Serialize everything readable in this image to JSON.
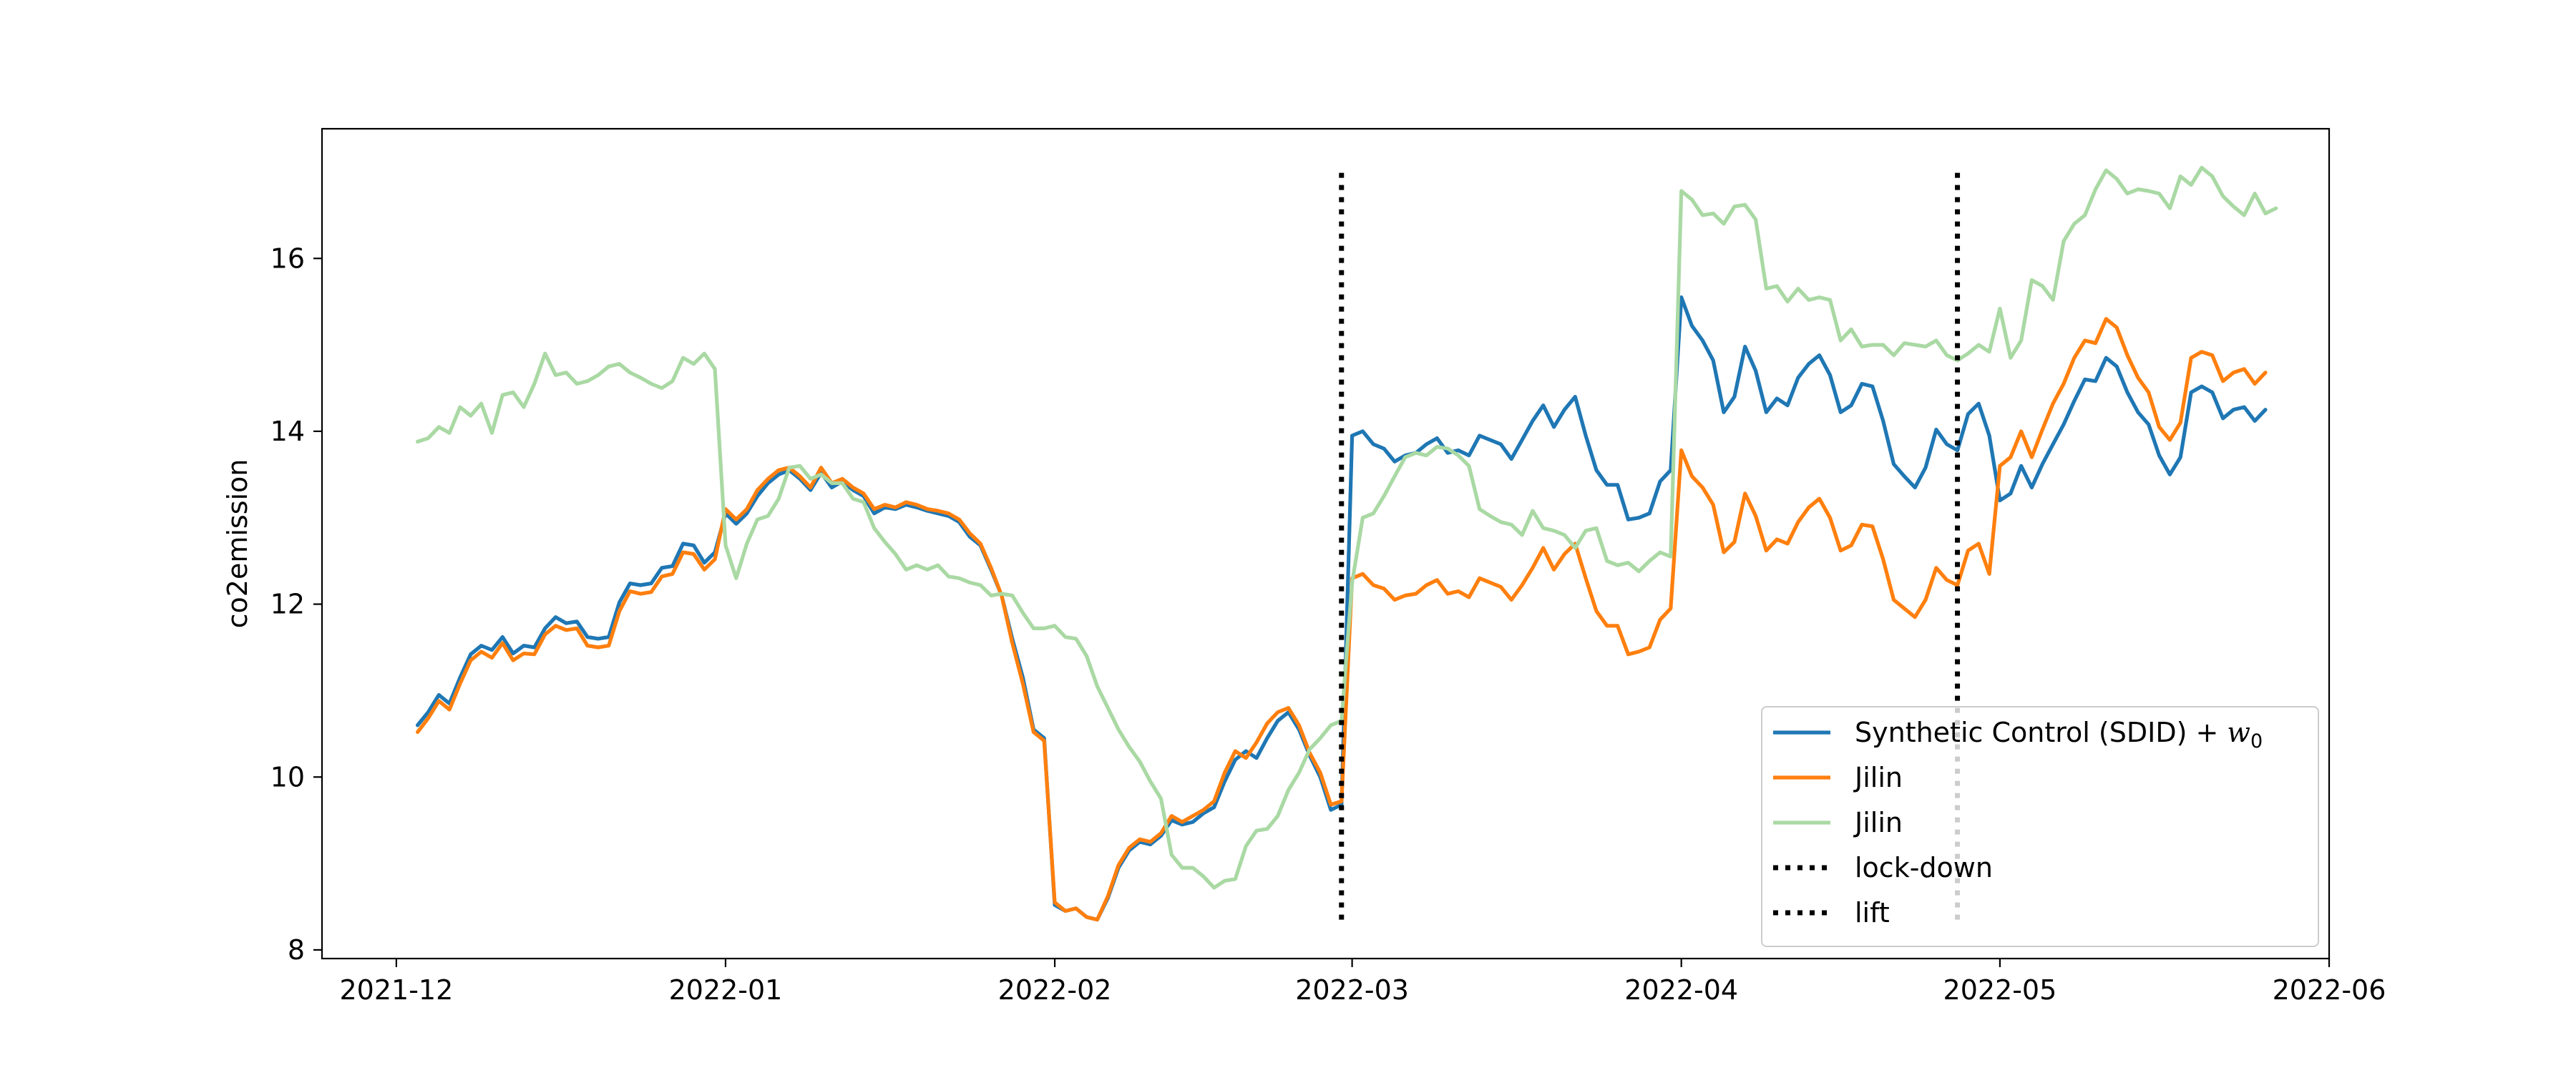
{
  "chart_data": {
    "type": "line",
    "title": "",
    "xlabel": "",
    "ylabel": "co2emission",
    "xlim": [
      "2021-11-24",
      "2022-06-01"
    ],
    "ylim": [
      7.9,
      17.5
    ],
    "x_ticks": [
      "2021-12",
      "2022-01",
      "2022-02",
      "2022-03",
      "2022-04",
      "2022-05",
      "2022-06"
    ],
    "y_ticks": [
      8,
      10,
      12,
      14,
      16
    ],
    "grid": false,
    "legend_position": "lower right",
    "series": [
      {
        "name": "Synthetic Control (SDID) + w0",
        "color": "#1f77b4",
        "start_date": "2021-12-03",
        "values": [
          10.6,
          10.75,
          10.95,
          10.85,
          11.15,
          11.42,
          11.52,
          11.47,
          11.62,
          11.43,
          11.52,
          11.5,
          11.72,
          11.85,
          11.78,
          11.8,
          11.62,
          11.6,
          11.62,
          12.02,
          12.24,
          12.22,
          12.24,
          12.42,
          12.44,
          12.7,
          12.68,
          12.48,
          12.6,
          13.05,
          12.93,
          13.05,
          13.25,
          13.4,
          13.5,
          13.55,
          13.45,
          13.32,
          13.52,
          13.35,
          13.42,
          13.32,
          13.25,
          13.05,
          13.12,
          13.1,
          13.15,
          13.12,
          13.08,
          13.05,
          13.02,
          12.95,
          12.78,
          12.68,
          12.4,
          12.1,
          11.6,
          11.15,
          10.55,
          10.45,
          8.52,
          8.45,
          8.48,
          8.38,
          8.35,
          8.6,
          8.95,
          9.15,
          9.25,
          9.22,
          9.32,
          9.5,
          9.45,
          9.48,
          9.58,
          9.65,
          9.95,
          10.2,
          10.3,
          10.22,
          10.45,
          10.65,
          10.75,
          10.55,
          10.25,
          10.0,
          9.62,
          9.68,
          13.95,
          14.0,
          13.85,
          13.8,
          13.65,
          13.72,
          13.75,
          13.85,
          13.92,
          13.75,
          13.78,
          13.72,
          13.95,
          13.9,
          13.85,
          13.68,
          13.9,
          14.12,
          14.3,
          14.05,
          14.25,
          14.4,
          13.95,
          13.55,
          13.38,
          13.38,
          12.98,
          13.0,
          13.05,
          13.42,
          13.55,
          15.55,
          15.22,
          15.05,
          14.82,
          14.22,
          14.4,
          14.98,
          14.7,
          14.22,
          14.38,
          14.3,
          14.62,
          14.78,
          14.88,
          14.65,
          14.22,
          14.3,
          14.55,
          14.52,
          14.12,
          13.62,
          13.48,
          13.35,
          13.58,
          14.02,
          13.85,
          13.78,
          14.2,
          14.32,
          13.95,
          13.2,
          13.28,
          13.6,
          13.35,
          13.62,
          13.85,
          14.08,
          14.35,
          14.6,
          14.58,
          14.85,
          14.75,
          14.45,
          14.22,
          14.08,
          13.72,
          13.5,
          13.7,
          14.45,
          14.52,
          14.45,
          14.15,
          14.25,
          14.28,
          14.12,
          14.25
        ]
      },
      {
        "name": "Jilin",
        "color": "#ff7f0e",
        "start_date": "2021-12-03",
        "values": [
          10.52,
          10.68,
          10.88,
          10.78,
          11.08,
          11.35,
          11.45,
          11.38,
          11.55,
          11.35,
          11.43,
          11.42,
          11.65,
          11.75,
          11.7,
          11.72,
          11.52,
          11.5,
          11.52,
          11.92,
          12.15,
          12.12,
          12.14,
          12.32,
          12.35,
          12.6,
          12.58,
          12.4,
          12.52,
          13.1,
          12.98,
          13.1,
          13.32,
          13.45,
          13.55,
          13.58,
          13.48,
          13.35,
          13.58,
          13.4,
          13.45,
          13.35,
          13.28,
          13.1,
          13.15,
          13.12,
          13.18,
          13.15,
          13.1,
          13.08,
          13.05,
          12.98,
          12.82,
          12.7,
          12.42,
          12.1,
          11.55,
          11.08,
          10.52,
          10.42,
          8.55,
          8.45,
          8.48,
          8.38,
          8.35,
          8.62,
          8.98,
          9.18,
          9.28,
          9.25,
          9.35,
          9.55,
          9.48,
          9.55,
          9.62,
          9.72,
          10.05,
          10.3,
          10.22,
          10.4,
          10.62,
          10.75,
          10.8,
          10.6,
          10.28,
          10.05,
          9.68,
          9.72,
          12.3,
          12.35,
          12.22,
          12.18,
          12.05,
          12.1,
          12.12,
          12.22,
          12.28,
          12.12,
          12.15,
          12.08,
          12.3,
          12.25,
          12.2,
          12.05,
          12.22,
          12.42,
          12.65,
          12.4,
          12.58,
          12.7,
          12.3,
          11.92,
          11.75,
          11.75,
          11.42,
          11.45,
          11.5,
          11.82,
          11.95,
          13.78,
          13.48,
          13.35,
          13.15,
          12.6,
          12.72,
          13.28,
          13.02,
          12.62,
          12.75,
          12.7,
          12.95,
          13.12,
          13.22,
          13.0,
          12.62,
          12.68,
          12.92,
          12.9,
          12.52,
          12.05,
          11.95,
          11.85,
          12.05,
          12.42,
          12.28,
          12.22,
          12.62,
          12.7,
          12.35,
          13.6,
          13.7,
          14.0,
          13.7,
          14.02,
          14.32,
          14.55,
          14.85,
          15.05,
          15.02,
          15.3,
          15.2,
          14.88,
          14.62,
          14.45,
          14.05,
          13.9,
          14.1,
          14.85,
          14.92,
          14.88,
          14.58,
          14.68,
          14.72,
          14.55,
          14.68
        ]
      },
      {
        "name": "Jilin",
        "color": "#aad9a4",
        "start_date": "2021-12-03",
        "values": [
          13.88,
          13.92,
          14.05,
          13.98,
          14.28,
          14.18,
          14.32,
          13.98,
          14.42,
          14.45,
          14.28,
          14.55,
          14.9,
          14.65,
          14.68,
          14.55,
          14.58,
          14.65,
          14.75,
          14.78,
          14.68,
          14.62,
          14.55,
          14.5,
          14.58,
          14.85,
          14.78,
          14.9,
          14.72,
          12.68,
          12.3,
          12.7,
          12.98,
          13.02,
          13.22,
          13.58,
          13.6,
          13.45,
          13.5,
          13.4,
          13.4,
          13.22,
          13.18,
          12.88,
          12.72,
          12.58,
          12.4,
          12.45,
          12.4,
          12.45,
          12.32,
          12.3,
          12.25,
          12.22,
          12.1,
          12.12,
          12.1,
          11.9,
          11.72,
          11.72,
          11.75,
          11.62,
          11.6,
          11.4,
          11.05,
          10.8,
          10.55,
          10.35,
          10.18,
          9.95,
          9.75,
          9.1,
          8.95,
          8.95,
          8.85,
          8.72,
          8.8,
          8.82,
          9.2,
          9.38,
          9.4,
          9.55,
          9.85,
          10.05,
          10.32,
          10.45,
          10.6,
          10.65,
          12.25,
          13.0,
          13.05,
          13.25,
          13.48,
          13.7,
          13.75,
          13.72,
          13.82,
          13.8,
          13.72,
          13.6,
          13.1,
          13.02,
          12.95,
          12.92,
          12.8,
          13.08,
          12.88,
          12.85,
          12.8,
          12.65,
          12.85,
          12.88,
          12.5,
          12.45,
          12.48,
          12.38,
          12.5,
          12.6,
          12.55,
          16.78,
          16.68,
          16.5,
          16.52,
          16.4,
          16.6,
          16.62,
          16.45,
          15.65,
          15.68,
          15.5,
          15.65,
          15.52,
          15.55,
          15.52,
          15.05,
          15.18,
          14.98,
          15.0,
          15.0,
          14.88,
          15.02,
          15.0,
          14.98,
          15.05,
          14.88,
          14.82,
          14.9,
          15.0,
          14.92,
          15.42,
          14.85,
          15.05,
          15.75,
          15.68,
          15.52,
          16.2,
          16.4,
          16.5,
          16.8,
          17.02,
          16.92,
          16.75,
          16.8,
          16.78,
          16.75,
          16.58,
          16.95,
          16.85,
          17.05,
          16.95,
          16.72,
          16.6,
          16.5,
          16.75,
          16.52,
          16.58
        ]
      }
    ],
    "vertical_lines": [
      {
        "name": "lock-down",
        "date": "2022-02-28",
        "y_range": [
          8.35,
          17.05
        ],
        "style": "dotted",
        "color": "#000000"
      },
      {
        "name": "lift",
        "date": "2022-04-27",
        "y_range": [
          8.35,
          17.05
        ],
        "style": "dotted",
        "color": "#000000"
      }
    ],
    "legend": [
      {
        "label": "Synthetic Control (SDID) + ",
        "math": "w",
        "sub": "0",
        "color": "#1f77b4",
        "style": "solid"
      },
      {
        "label": "Jilin",
        "color": "#ff7f0e",
        "style": "solid"
      },
      {
        "label": "Jilin",
        "color": "#aad9a4",
        "style": "solid"
      },
      {
        "label": "lock-down",
        "color": "#000000",
        "style": "dotted"
      },
      {
        "label": "lift",
        "color": "#000000",
        "style": "dotted"
      }
    ]
  }
}
